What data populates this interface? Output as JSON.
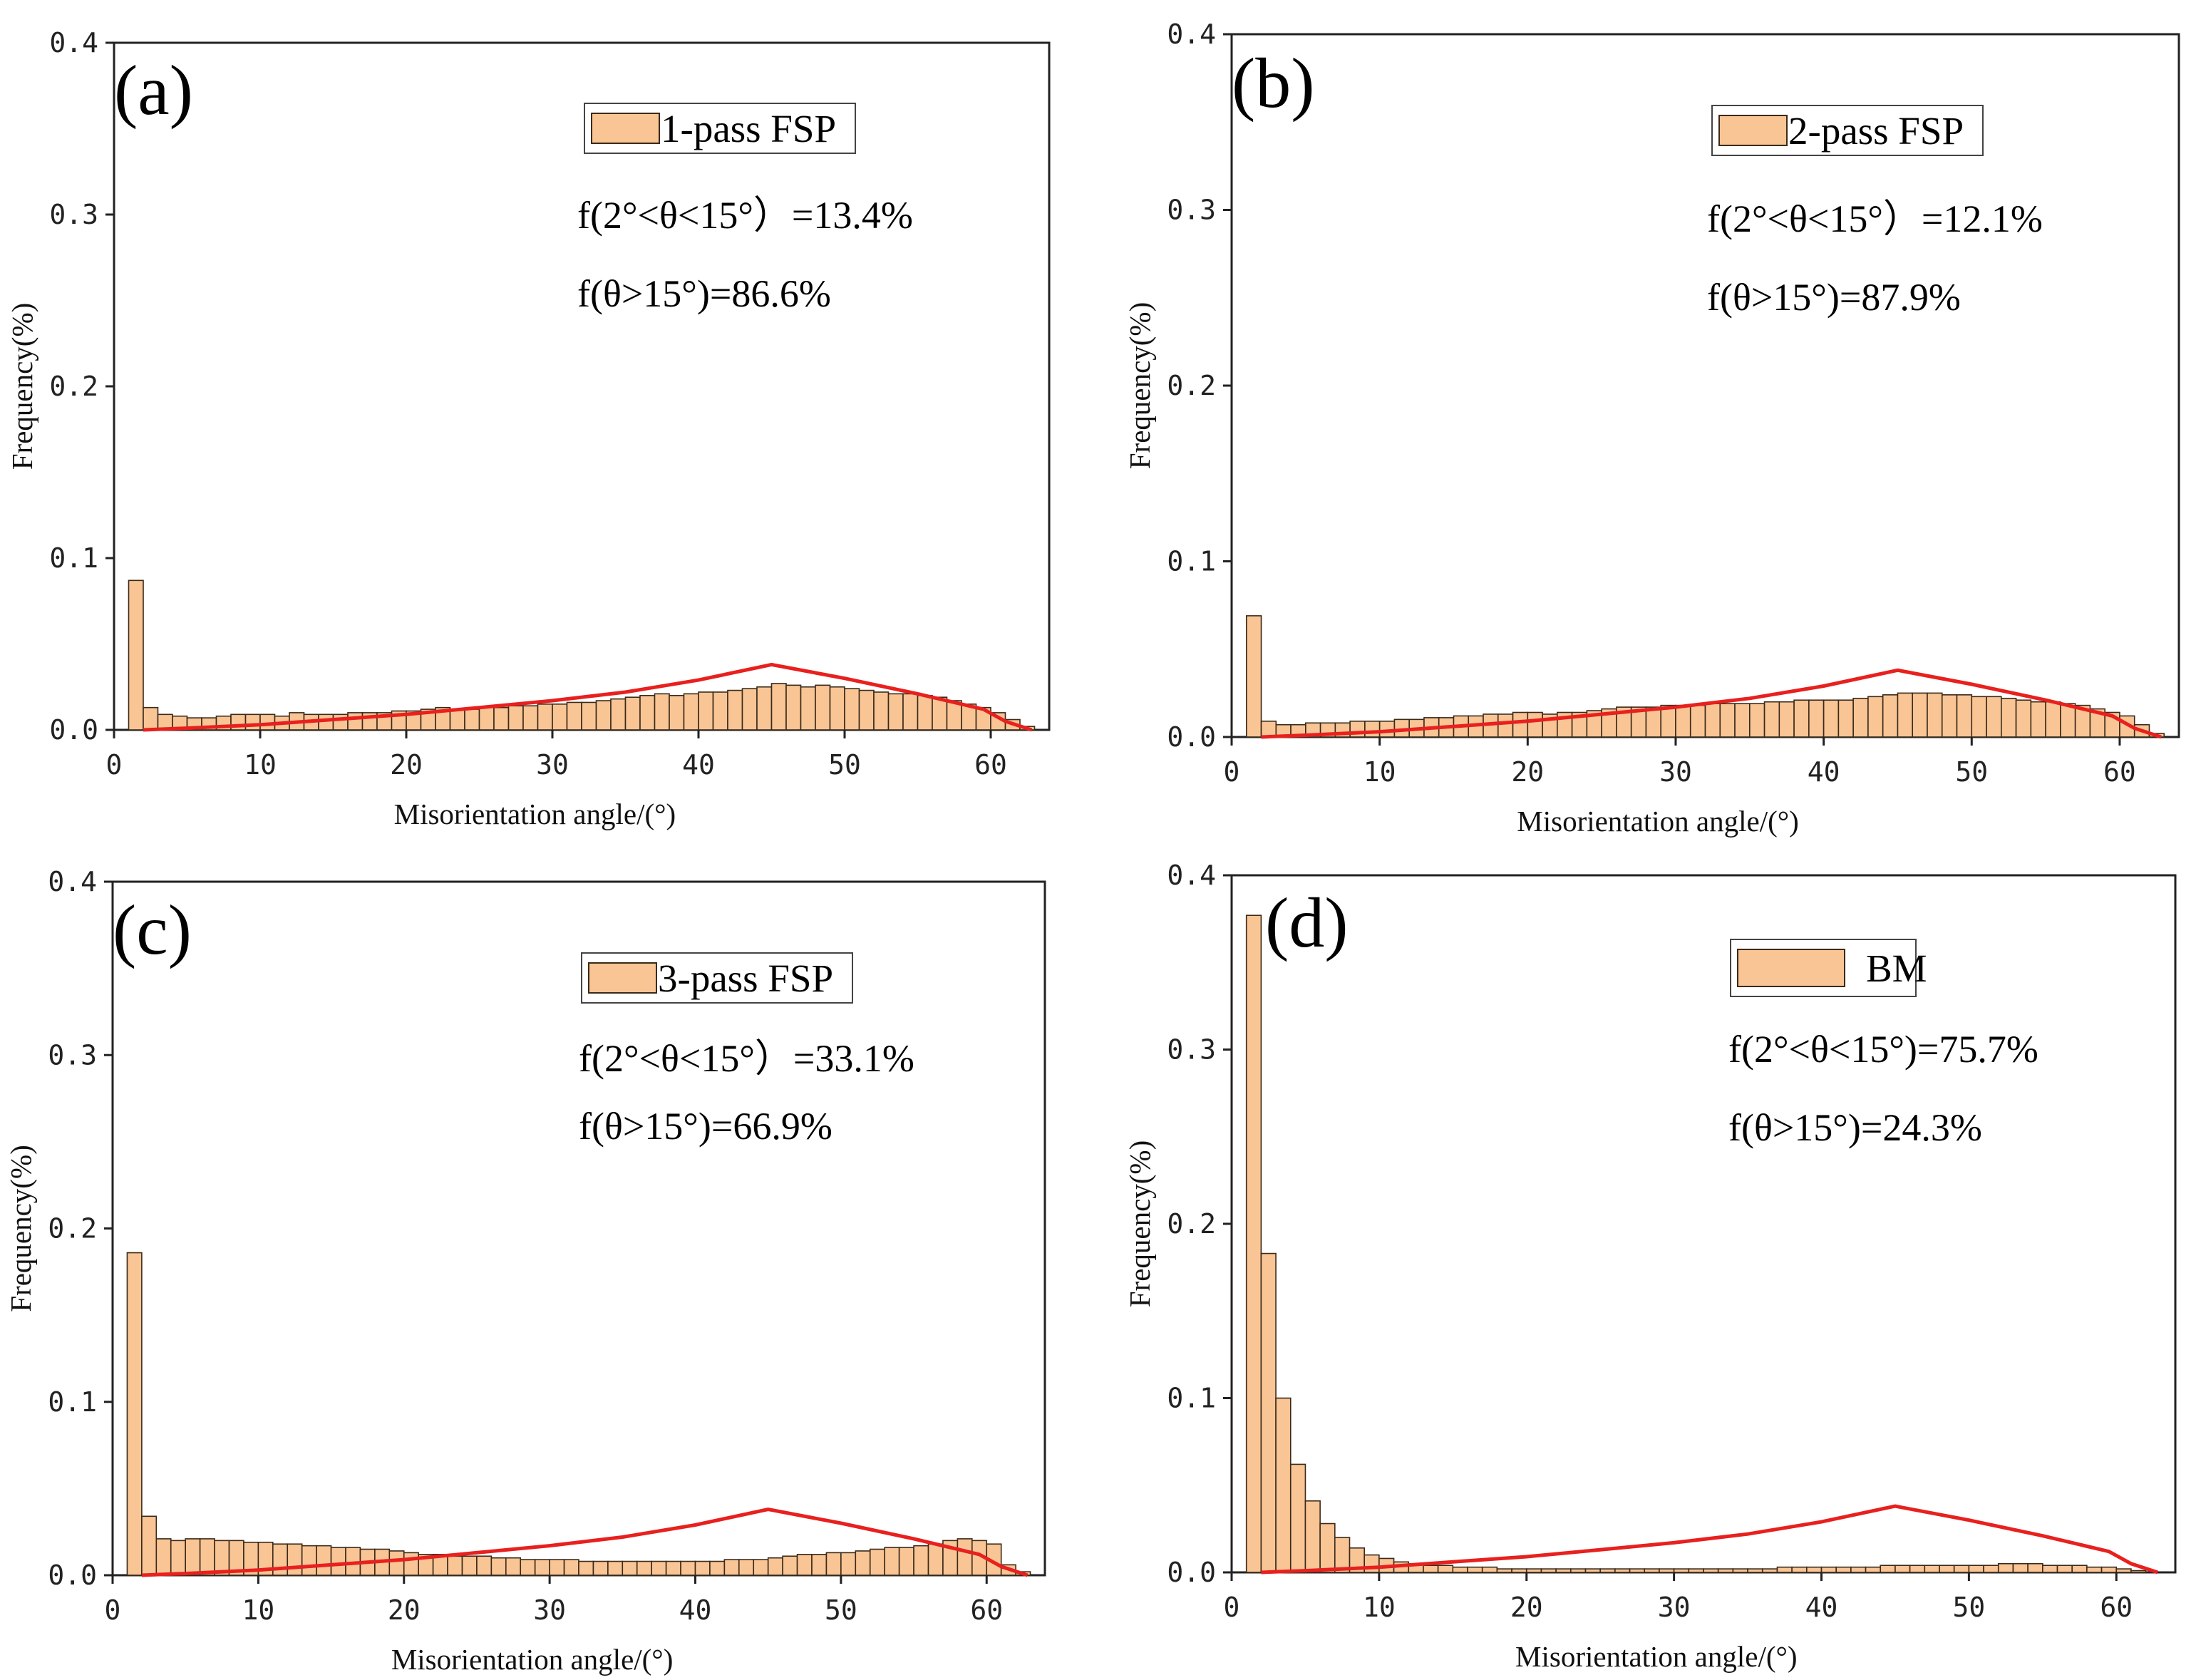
{
  "chart_data": [
    {
      "id": "a",
      "type": "bar",
      "panel_label": "(a)",
      "legend": "1-pass FSP",
      "stats": [
        "f(2°<θ<15°）=13.4%",
        "f(θ>15°)=86.6%"
      ],
      "xlabel": "Misorientation angle/(°)",
      "ylabel": "Frequency(%)",
      "xlim": [
        0,
        64
      ],
      "ylim": [
        0,
        0.4
      ],
      "xticks": [
        0,
        10,
        20,
        30,
        40,
        50,
        60
      ],
      "yticks": [
        "0.0",
        "0.1",
        "0.2",
        "0.3",
        "0.4"
      ],
      "bin_width": 1,
      "x_start": 1,
      "values": [
        0.087,
        0.013,
        0.009,
        0.008,
        0.007,
        0.007,
        0.008,
        0.009,
        0.009,
        0.009,
        0.008,
        0.01,
        0.009,
        0.009,
        0.009,
        0.01,
        0.01,
        0.01,
        0.011,
        0.011,
        0.012,
        0.013,
        0.012,
        0.012,
        0.013,
        0.013,
        0.014,
        0.014,
        0.015,
        0.015,
        0.016,
        0.016,
        0.017,
        0.018,
        0.019,
        0.02,
        0.021,
        0.02,
        0.021,
        0.022,
        0.022,
        0.023,
        0.024,
        0.025,
        0.027,
        0.026,
        0.025,
        0.026,
        0.025,
        0.024,
        0.023,
        0.022,
        0.021,
        0.021,
        0.02,
        0.019,
        0.017,
        0.015,
        0.013,
        0.01,
        0.006,
        0.002
      ],
      "curve": {
        "name": "",
        "x": [
          2,
          5,
          10,
          15,
          20,
          25,
          30,
          35,
          40,
          45,
          50,
          55,
          59.5,
          61,
          62.8
        ],
        "y": [
          0.0,
          0.001,
          0.003,
          0.006,
          0.009,
          0.013,
          0.017,
          0.022,
          0.029,
          0.038,
          0.03,
          0.021,
          0.012,
          0.005,
          0.0
        ]
      }
    },
    {
      "id": "b",
      "type": "bar",
      "panel_label": "(b)",
      "legend": "2-pass FSP",
      "stats": [
        "f(2°<θ<15°）=12.1%",
        "f(θ>15°)=87.9%"
      ],
      "xlabel": "Misorientation angle/(°)",
      "ylabel": "Frequency(%)",
      "xlim": [
        0,
        64
      ],
      "ylim": [
        0,
        0.4
      ],
      "xticks": [
        0,
        10,
        20,
        30,
        40,
        50,
        60
      ],
      "yticks": [
        "0.0",
        "0.1",
        "0.2",
        "0.3",
        "0.4"
      ],
      "bin_width": 1,
      "x_start": 1,
      "values": [
        0.069,
        0.009,
        0.007,
        0.007,
        0.008,
        0.008,
        0.008,
        0.009,
        0.009,
        0.009,
        0.01,
        0.01,
        0.011,
        0.011,
        0.012,
        0.012,
        0.013,
        0.013,
        0.014,
        0.014,
        0.013,
        0.014,
        0.014,
        0.015,
        0.016,
        0.017,
        0.017,
        0.017,
        0.018,
        0.018,
        0.018,
        0.019,
        0.019,
        0.019,
        0.019,
        0.02,
        0.02,
        0.021,
        0.021,
        0.021,
        0.021,
        0.022,
        0.023,
        0.024,
        0.025,
        0.025,
        0.025,
        0.024,
        0.024,
        0.023,
        0.023,
        0.022,
        0.021,
        0.02,
        0.02,
        0.019,
        0.018,
        0.016,
        0.014,
        0.012,
        0.007,
        0.002
      ],
      "curve": {
        "name": "",
        "x": [
          2,
          5,
          10,
          15,
          20,
          25,
          30,
          35,
          40,
          45,
          50,
          55,
          59.5,
          61,
          62.8
        ],
        "y": [
          0.0,
          0.001,
          0.003,
          0.006,
          0.009,
          0.013,
          0.017,
          0.022,
          0.029,
          0.038,
          0.03,
          0.021,
          0.012,
          0.005,
          0.0
        ]
      }
    },
    {
      "id": "c",
      "type": "bar",
      "panel_label": "(c)",
      "legend": "3-pass FSP",
      "stats": [
        "f(2°<θ<15°）=33.1%",
        "f(θ>15°)=66.9%"
      ],
      "xlabel": "Misorientation angle/(°)",
      "ylabel": "Frequency(%)",
      "xlim": [
        0,
        64
      ],
      "ylim": [
        0,
        0.4
      ],
      "xticks": [
        0,
        10,
        20,
        30,
        40,
        50,
        60
      ],
      "yticks": [
        "0.0",
        "0.1",
        "0.2",
        "0.3",
        "0.4"
      ],
      "bin_width": 1,
      "x_start": 1,
      "values": [
        0.186,
        0.034,
        0.021,
        0.02,
        0.021,
        0.021,
        0.02,
        0.02,
        0.019,
        0.019,
        0.018,
        0.018,
        0.017,
        0.017,
        0.016,
        0.016,
        0.015,
        0.015,
        0.014,
        0.013,
        0.012,
        0.012,
        0.011,
        0.011,
        0.011,
        0.01,
        0.01,
        0.009,
        0.009,
        0.009,
        0.009,
        0.008,
        0.008,
        0.008,
        0.008,
        0.008,
        0.008,
        0.008,
        0.008,
        0.008,
        0.008,
        0.009,
        0.009,
        0.009,
        0.01,
        0.011,
        0.012,
        0.012,
        0.013,
        0.013,
        0.014,
        0.015,
        0.016,
        0.016,
        0.017,
        0.018,
        0.02,
        0.021,
        0.02,
        0.018,
        0.006,
        0.002
      ],
      "curve": {
        "name": "",
        "x": [
          2,
          5,
          10,
          15,
          20,
          25,
          30,
          35,
          40,
          45,
          50,
          55,
          59.5,
          61,
          62.8
        ],
        "y": [
          0.0,
          0.001,
          0.003,
          0.006,
          0.009,
          0.013,
          0.017,
          0.022,
          0.029,
          0.038,
          0.03,
          0.021,
          0.012,
          0.005,
          0.0
        ]
      }
    },
    {
      "id": "d",
      "type": "bar",
      "panel_label": "(d)",
      "legend": "BM",
      "stats": [
        "f(2°<θ<15°)=75.7%",
        "f(θ>15°)=24.3%"
      ],
      "xlabel": "Misorientation angle/(°)",
      "ylabel": "Frequency(%)",
      "xlim": [
        0,
        64
      ],
      "ylim": [
        0,
        0.4
      ],
      "xticks": [
        0,
        10,
        20,
        30,
        40,
        50,
        60
      ],
      "yticks": [
        "0.0",
        "0.1",
        "0.2",
        "0.3",
        "0.4"
      ],
      "bin_width": 1,
      "x_start": 1,
      "values": [
        0.377,
        0.183,
        0.1,
        0.062,
        0.041,
        0.028,
        0.02,
        0.014,
        0.01,
        0.008,
        0.006,
        0.005,
        0.004,
        0.004,
        0.003,
        0.003,
        0.003,
        0.002,
        0.002,
        0.002,
        0.002,
        0.002,
        0.002,
        0.002,
        0.002,
        0.002,
        0.002,
        0.002,
        0.002,
        0.002,
        0.002,
        0.002,
        0.002,
        0.002,
        0.002,
        0.002,
        0.003,
        0.003,
        0.003,
        0.003,
        0.003,
        0.003,
        0.003,
        0.004,
        0.004,
        0.004,
        0.004,
        0.004,
        0.004,
        0.004,
        0.004,
        0.005,
        0.005,
        0.005,
        0.004,
        0.004,
        0.004,
        0.003,
        0.003,
        0.002,
        0.001
      ],
      "curve": {
        "name": "",
        "x": [
          2,
          5,
          10,
          15,
          20,
          25,
          30,
          35,
          40,
          45,
          50,
          55,
          59.5,
          61,
          62.8
        ],
        "y": [
          0.0,
          0.001,
          0.003,
          0.006,
          0.009,
          0.013,
          0.017,
          0.022,
          0.029,
          0.038,
          0.03,
          0.021,
          0.012,
          0.005,
          0.0
        ]
      }
    }
  ],
  "colors": {
    "bar_fill": "#f9c595",
    "bar_stroke": "#3a2a1a",
    "curve": "#e8201e",
    "axis": "#222222"
  }
}
